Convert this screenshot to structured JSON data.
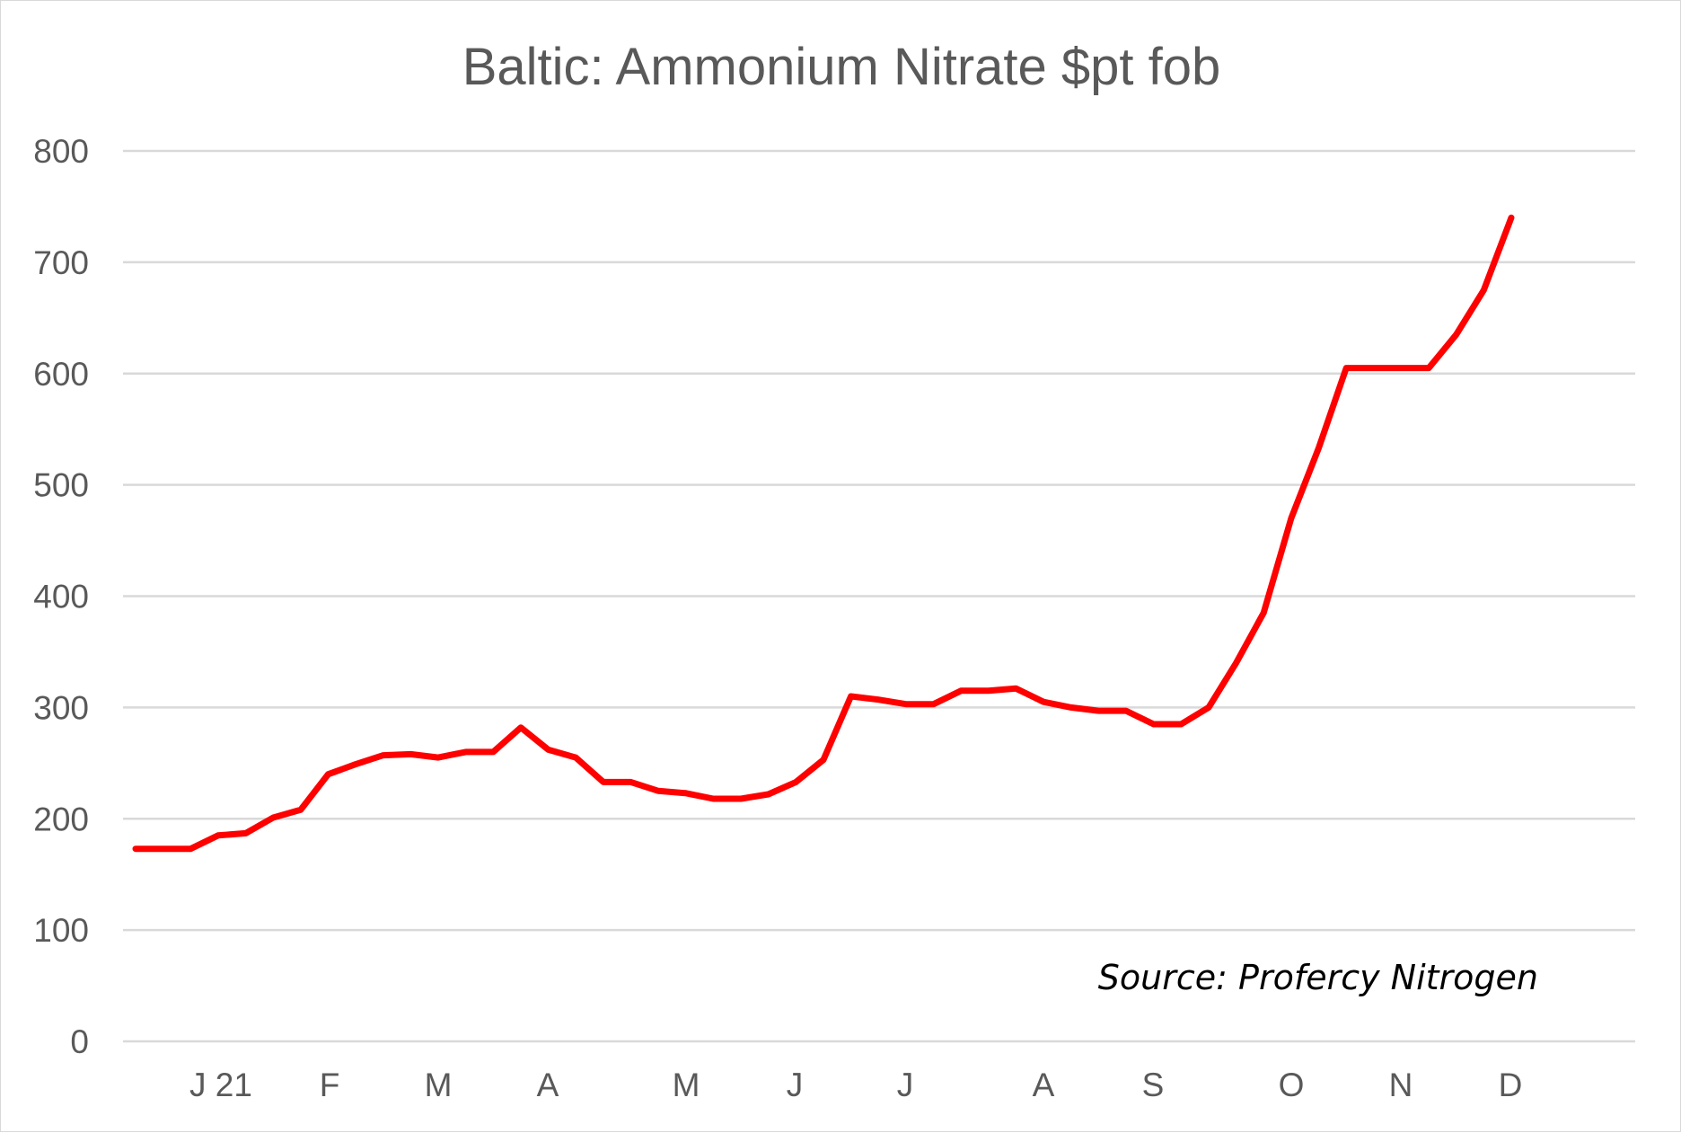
{
  "chart_data": {
    "type": "line",
    "title": "Baltic: Ammonium Nitrate $pt fob",
    "xlabel": "",
    "ylabel": "",
    "ylim": [
      0,
      800
    ],
    "y_ticks": [
      0,
      100,
      200,
      300,
      400,
      500,
      600,
      700,
      800
    ],
    "x_tick_labels": [
      "J 21",
      "F",
      "M",
      "A",
      "M",
      "J",
      "J",
      "A",
      "S",
      "O",
      "N",
      "D"
    ],
    "grid": true,
    "legend": "none",
    "annotation": "Source: Profercy Nitrogen",
    "colors": {
      "series": "#ff0000",
      "grid": "#d9d9d9",
      "text": "#595959"
    },
    "series": [
      {
        "values": [
          173,
          173,
          173,
          185,
          187,
          201,
          208,
          240,
          249,
          257,
          258,
          255,
          260,
          260,
          282,
          262,
          255,
          233,
          233,
          225,
          223,
          218,
          218,
          222,
          233,
          253,
          310,
          307,
          303,
          303,
          315,
          315,
          317,
          305,
          300,
          297,
          297,
          285,
          285,
          300,
          340,
          385,
          470,
          533,
          605,
          605,
          605,
          605,
          635,
          675,
          740
        ]
      }
    ]
  }
}
